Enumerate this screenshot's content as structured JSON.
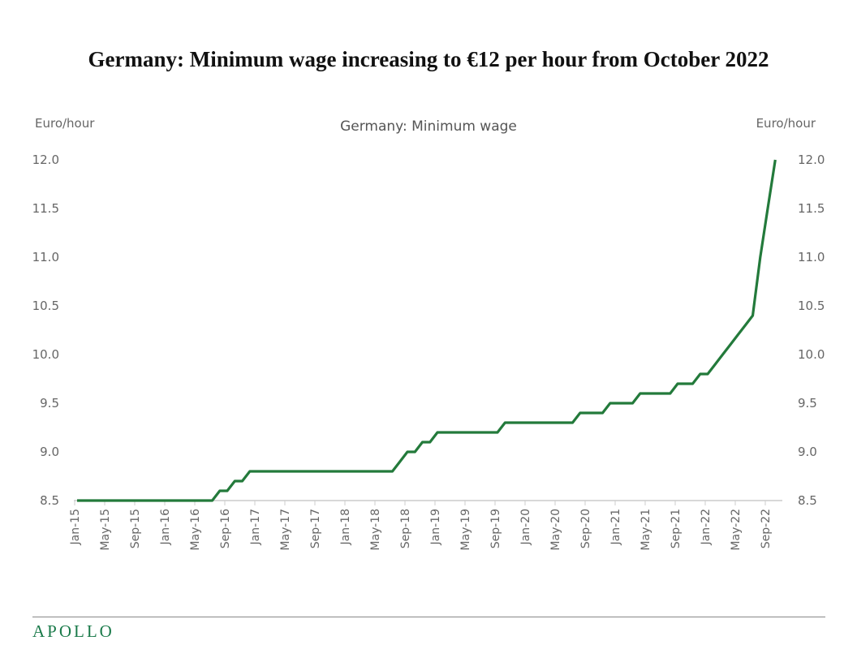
{
  "title": "Germany: Minimum wage increasing to €12 per hour from October 2022",
  "logo": "APOLLO",
  "colors": {
    "line": "#237a3b",
    "logo": "#1a7a4a",
    "axis": "#cccccc"
  },
  "chart_data": {
    "type": "line",
    "title": "Germany: Minimum wage",
    "ylabel_left": "Euro/hour",
    "ylabel_right": "Euro/hour",
    "ylim": [
      8.5,
      12.0
    ],
    "yticks": [
      "8.5",
      "9.0",
      "9.5",
      "10.0",
      "10.5",
      "11.0",
      "11.5",
      "12.0"
    ],
    "grid": false,
    "xticks": [
      "Jan-15",
      "May-15",
      "Sep-15",
      "Jan-16",
      "May-16",
      "Sep-16",
      "Jan-17",
      "May-17",
      "Sep-17",
      "Jan-18",
      "May-18",
      "Sep-18",
      "Jan-19",
      "May-19",
      "Sep-19",
      "Jan-20",
      "May-20",
      "Sep-20",
      "Jan-21",
      "May-21",
      "Sep-21",
      "Jan-22",
      "May-22",
      "Sep-22"
    ],
    "x": [
      "Jan-15",
      "Feb-15",
      "Mar-15",
      "Apr-15",
      "May-15",
      "Jun-15",
      "Jul-15",
      "Aug-15",
      "Sep-15",
      "Oct-15",
      "Nov-15",
      "Dec-15",
      "Jan-16",
      "Feb-16",
      "Mar-16",
      "Apr-16",
      "May-16",
      "Jun-16",
      "Jul-16",
      "Aug-16",
      "Sep-16",
      "Oct-16",
      "Nov-16",
      "Dec-16",
      "Jan-17",
      "Feb-17",
      "Mar-17",
      "Apr-17",
      "May-17",
      "Jun-17",
      "Jul-17",
      "Aug-17",
      "Sep-17",
      "Oct-17",
      "Nov-17",
      "Dec-17",
      "Jan-18",
      "Feb-18",
      "Mar-18",
      "Apr-18",
      "May-18",
      "Jun-18",
      "Jul-18",
      "Aug-18",
      "Sep-18",
      "Oct-18",
      "Nov-18",
      "Dec-18",
      "Jan-19",
      "Feb-19",
      "Mar-19",
      "Apr-19",
      "May-19",
      "Jun-19",
      "Jul-19",
      "Aug-19",
      "Sep-19",
      "Oct-19",
      "Nov-19",
      "Dec-19",
      "Jan-20",
      "Feb-20",
      "Mar-20",
      "Apr-20",
      "May-20",
      "Jun-20",
      "Jul-20",
      "Aug-20",
      "Sep-20",
      "Oct-20",
      "Nov-20",
      "Dec-20",
      "Jan-21",
      "Feb-21",
      "Mar-21",
      "Apr-21",
      "May-21",
      "Jun-21",
      "Jul-21",
      "Aug-21",
      "Sep-21",
      "Oct-21",
      "Nov-21",
      "Dec-21",
      "Jan-22",
      "Feb-22",
      "Mar-22",
      "Apr-22",
      "May-22",
      "Jun-22",
      "Jul-22",
      "Aug-22",
      "Sep-22",
      "Oct-22"
    ],
    "series": [
      {
        "values": [
          8.5,
          8.5,
          8.5,
          8.5,
          8.5,
          8.5,
          8.5,
          8.5,
          8.5,
          8.5,
          8.5,
          8.5,
          8.5,
          8.5,
          8.5,
          8.5,
          8.5,
          8.5,
          8.5,
          8.6,
          8.6,
          8.7,
          8.7,
          8.8,
          8.8,
          8.8,
          8.8,
          8.8,
          8.8,
          8.8,
          8.8,
          8.8,
          8.8,
          8.8,
          8.8,
          8.8,
          8.8,
          8.8,
          8.8,
          8.8,
          8.8,
          8.8,
          8.8,
          8.9,
          9.0,
          9.0,
          9.1,
          9.1,
          9.2,
          9.2,
          9.2,
          9.2,
          9.2,
          9.2,
          9.2,
          9.2,
          9.2,
          9.3,
          9.3,
          9.3,
          9.3,
          9.3,
          9.3,
          9.3,
          9.3,
          9.3,
          9.3,
          9.4,
          9.4,
          9.4,
          9.4,
          9.5,
          9.5,
          9.5,
          9.5,
          9.6,
          9.6,
          9.6,
          9.6,
          9.6,
          9.7,
          9.7,
          9.7,
          9.8,
          9.8,
          9.9,
          10.0,
          10.1,
          10.2,
          10.3,
          10.4,
          11.0,
          11.5,
          12.0
        ]
      }
    ]
  }
}
